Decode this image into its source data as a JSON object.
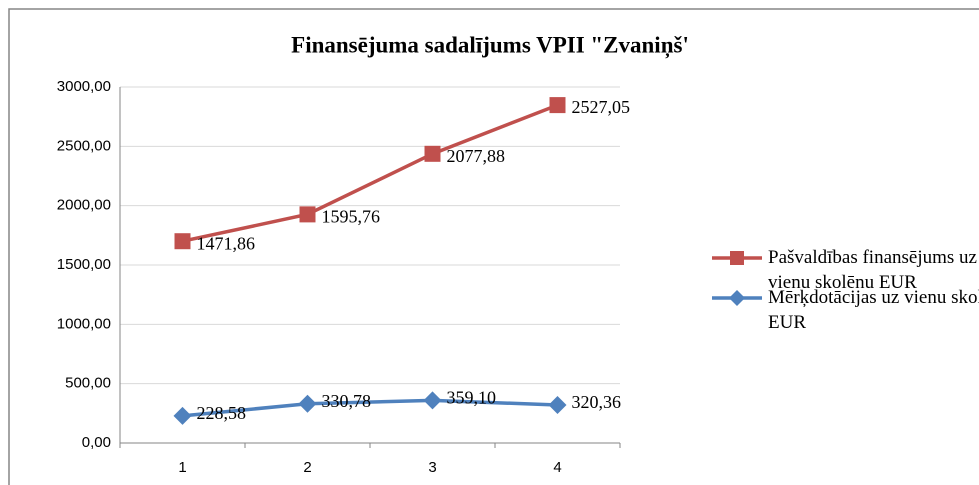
{
  "chart_data": {
    "type": "line",
    "stacked": true,
    "title": "Finansējuma sadalījums VPII \"Zvaniņš'",
    "categories": [
      "1",
      "2",
      "3",
      "4"
    ],
    "series": [
      {
        "name": "Pašvaldības finansējums uz vienu skolēnu EUR",
        "color": "#c0504d",
        "marker": "square",
        "values": [
          1471.86,
          1595.76,
          2077.88,
          2527.05
        ],
        "value_labels": [
          "1471,86",
          "1595,76",
          "2077,88",
          "2527,05"
        ]
      },
      {
        "name": "Mērķdotācijas uz vienu skolēnu EUR",
        "color": "#4f81bd",
        "marker": "diamond",
        "values": [
          228.58,
          330.78,
          359.1,
          320.36
        ],
        "value_labels": [
          "228,58",
          "330,78",
          "359,10",
          "320,36"
        ]
      }
    ],
    "ylim": [
      0,
      3000
    ],
    "yticks": [
      {
        "value": 0,
        "label": "0,00"
      },
      {
        "value": 500,
        "label": "500,00"
      },
      {
        "value": 1000,
        "label": "1000,00"
      },
      {
        "value": 1500,
        "label": "1500,00"
      },
      {
        "value": 2000,
        "label": "2000,00"
      },
      {
        "value": 2500,
        "label": "2500,00"
      },
      {
        "value": 3000,
        "label": "3000,00"
      }
    ],
    "grid": true,
    "legend": "right"
  }
}
